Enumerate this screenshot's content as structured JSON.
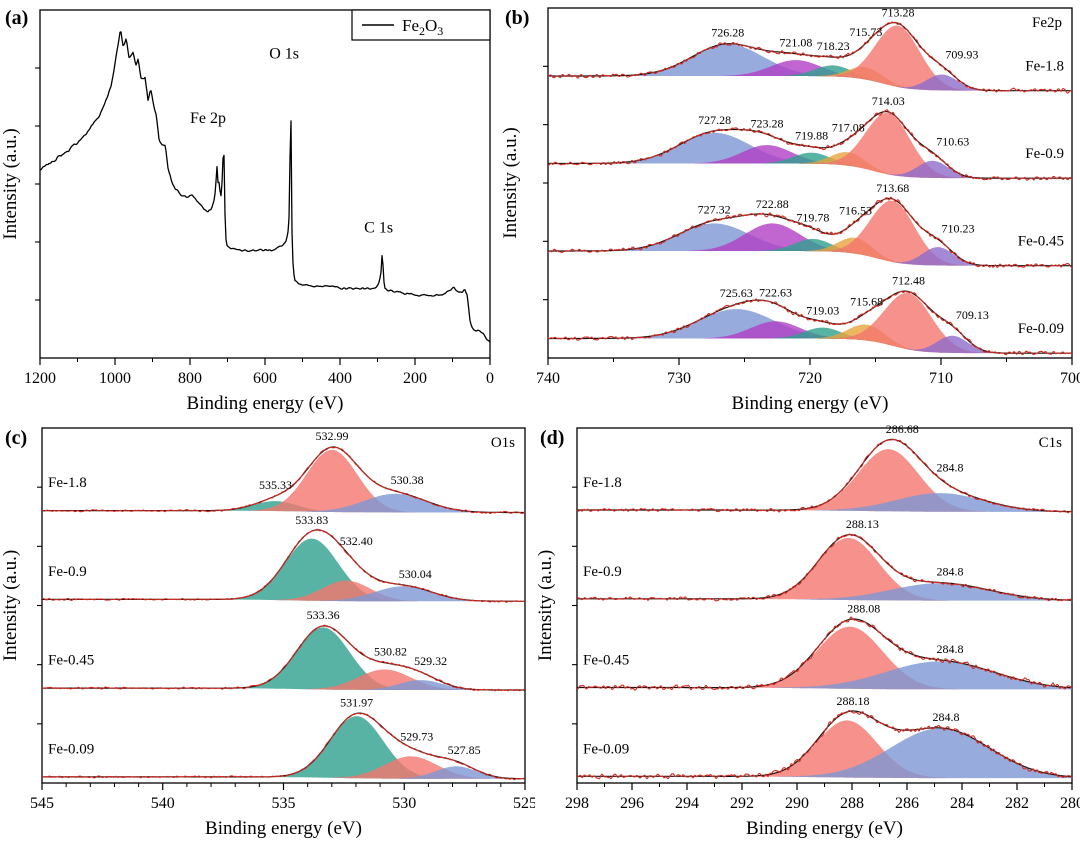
{
  "palette": {
    "signal_line": "#d42a20",
    "envelope_line": "#141414",
    "survey_line": "#000000",
    "red": "#f4756e",
    "blue": "#7d97d3",
    "teal": "#2fa08f",
    "purple": "#b13fc6",
    "orange": "#e7a43c",
    "violet": "#8d6bcb"
  },
  "chart_data": [
    {
      "id": "a",
      "type": "survey",
      "panel_label": "(a)",
      "xlabel": "Binding energy (eV)",
      "ylabel": "Intensity (a.u.)",
      "x_range": [
        1200,
        0
      ],
      "x_ticks": [
        1200,
        1000,
        800,
        600,
        400,
        200,
        0
      ],
      "x_minor": 100,
      "legend": {
        "parts": [
          {
            "t": "Fe"
          },
          {
            "t": "2",
            "sub": true
          },
          {
            "t": "O"
          },
          {
            "t": "3",
            "sub": true
          }
        ]
      },
      "annotations": [
        {
          "label": "Fe 2p",
          "x": 752,
          "y": 0.675
        },
        {
          "label": "O 1s",
          "x": 549,
          "y": 0.86
        },
        {
          "label": "C 1s",
          "x": 297,
          "y": 0.36
        }
      ],
      "points": [
        [
          1200,
          0.54
        ],
        [
          1160,
          0.57
        ],
        [
          1120,
          0.6
        ],
        [
          1080,
          0.64
        ],
        [
          1040,
          0.7
        ],
        [
          1010,
          0.78
        ],
        [
          995,
          0.88
        ],
        [
          985,
          0.95
        ],
        [
          978,
          0.89
        ],
        [
          970,
          0.92
        ],
        [
          962,
          0.86
        ],
        [
          952,
          0.88
        ],
        [
          945,
          0.84
        ],
        [
          938,
          0.86
        ],
        [
          930,
          0.8
        ],
        [
          920,
          0.81
        ],
        [
          912,
          0.74
        ],
        [
          905,
          0.77
        ],
        [
          898,
          0.73
        ],
        [
          890,
          0.7
        ],
        [
          882,
          0.62
        ],
        [
          874,
          0.61
        ],
        [
          866,
          0.61
        ],
        [
          858,
          0.54
        ],
        [
          850,
          0.51
        ],
        [
          840,
          0.49
        ],
        [
          825,
          0.47
        ],
        [
          810,
          0.46
        ],
        [
          795,
          0.47
        ],
        [
          780,
          0.45
        ],
        [
          765,
          0.43
        ],
        [
          752,
          0.42
        ],
        [
          742,
          0.43
        ],
        [
          734,
          0.46
        ],
        [
          729,
          0.53
        ],
        [
          727,
          0.57
        ],
        [
          725,
          0.49
        ],
        [
          722,
          0.51
        ],
        [
          719,
          0.47
        ],
        [
          716,
          0.47
        ],
        [
          713,
          0.55
        ],
        [
          710,
          0.62
        ],
        [
          708,
          0.5
        ],
        [
          706,
          0.37
        ],
        [
          703,
          0.33
        ],
        [
          700,
          0.32
        ],
        [
          685,
          0.315
        ],
        [
          665,
          0.31
        ],
        [
          645,
          0.31
        ],
        [
          625,
          0.31
        ],
        [
          605,
          0.31
        ],
        [
          585,
          0.31
        ],
        [
          568,
          0.315
        ],
        [
          552,
          0.325
        ],
        [
          543,
          0.335
        ],
        [
          537,
          0.37
        ],
        [
          534,
          0.46
        ],
        [
          532,
          0.8
        ],
        [
          530,
          0.62
        ],
        [
          528,
          0.36
        ],
        [
          525,
          0.26
        ],
        [
          521,
          0.22
        ],
        [
          512,
          0.215
        ],
        [
          498,
          0.21
        ],
        [
          482,
          0.21
        ],
        [
          466,
          0.205
        ],
        [
          450,
          0.205
        ],
        [
          434,
          0.21
        ],
        [
          418,
          0.205
        ],
        [
          402,
          0.2
        ],
        [
          386,
          0.2
        ],
        [
          370,
          0.2
        ],
        [
          354,
          0.2
        ],
        [
          338,
          0.2
        ],
        [
          322,
          0.2
        ],
        [
          306,
          0.2
        ],
        [
          297,
          0.21
        ],
        [
          291,
          0.24
        ],
        [
          287,
          0.31
        ],
        [
          284,
          0.23
        ],
        [
          281,
          0.2
        ],
        [
          274,
          0.195
        ],
        [
          258,
          0.19
        ],
        [
          242,
          0.19
        ],
        [
          226,
          0.185
        ],
        [
          210,
          0.185
        ],
        [
          194,
          0.18
        ],
        [
          178,
          0.18
        ],
        [
          162,
          0.18
        ],
        [
          146,
          0.18
        ],
        [
          130,
          0.182
        ],
        [
          116,
          0.188
        ],
        [
          104,
          0.198
        ],
        [
          97,
          0.208
        ],
        [
          91,
          0.196
        ],
        [
          83,
          0.19
        ],
        [
          75,
          0.19
        ],
        [
          67,
          0.196
        ],
        [
          61,
          0.182
        ],
        [
          57,
          0.145
        ],
        [
          53,
          0.105
        ],
        [
          49,
          0.088
        ],
        [
          43,
          0.08
        ],
        [
          37,
          0.076
        ],
        [
          31,
          0.08
        ],
        [
          25,
          0.076
        ],
        [
          19,
          0.07
        ],
        [
          13,
          0.062
        ],
        [
          7,
          0.052
        ],
        [
          0,
          0.046
        ]
      ]
    },
    {
      "id": "b",
      "type": "stacked",
      "panel_label": "(b)",
      "corner_label": "Fe2p",
      "xlabel": "Binding energy (eV)",
      "ylabel": "Intensity (a.u.)",
      "x_range": [
        740,
        700
      ],
      "x_ticks": [
        740,
        730,
        720,
        710,
        700
      ],
      "x_minor": 5,
      "label_side": "right",
      "traces": [
        {
          "name": "Fe-1.8",
          "background": {
            "left": 0.27,
            "right": 0.03,
            "step_center": 714.5,
            "step_width": 1.1
          },
          "peaks": [
            {
              "center": 726.28,
              "height": 0.52,
              "sigma": 2.7,
              "color": "blue",
              "label": "726.28"
            },
            {
              "center": 721.08,
              "height": 0.26,
              "sigma": 1.9,
              "color": "purple",
              "label": "721.08"
            },
            {
              "center": 718.23,
              "height": 0.18,
              "sigma": 1.4,
              "color": "teal",
              "label": "718.23"
            },
            {
              "center": 715.73,
              "height": 0.2,
              "sigma": 1.3,
              "color": "orange",
              "label": "715.73"
            },
            {
              "center": 713.28,
              "height": 1.0,
              "sigma": 1.7,
              "color": "red",
              "label": "713.28"
            },
            {
              "center": 709.93,
              "height": 0.26,
              "sigma": 1.2,
              "color": "violet",
              "label": "709.93",
              "ldx": 20
            }
          ]
        },
        {
          "name": "Fe-0.9",
          "background": {
            "left": 0.27,
            "right": 0.03,
            "step_center": 715.2,
            "step_width": 1.1
          },
          "peaks": [
            {
              "center": 727.28,
              "height": 0.5,
              "sigma": 2.7,
              "color": "blue",
              "label": "727.28"
            },
            {
              "center": 723.28,
              "height": 0.3,
              "sigma": 1.9,
              "color": "purple",
              "label": "723.28"
            },
            {
              "center": 719.88,
              "height": 0.18,
              "sigma": 1.4,
              "color": "teal",
              "label": "719.88"
            },
            {
              "center": 717.08,
              "height": 0.22,
              "sigma": 1.3,
              "color": "orange",
              "label": "717.08"
            },
            {
              "center": 714.03,
              "height": 1.0,
              "sigma": 1.7,
              "color": "red",
              "label": "714.03"
            },
            {
              "center": 710.63,
              "height": 0.28,
              "sigma": 1.2,
              "color": "violet",
              "label": "710.63",
              "ldx": 20
            }
          ]
        },
        {
          "name": "Fe-0.45",
          "background": {
            "left": 0.27,
            "right": 0.03,
            "step_center": 714.9,
            "step_width": 1.1
          },
          "peaks": [
            {
              "center": 727.32,
              "height": 0.45,
              "sigma": 2.7,
              "color": "blue",
              "label": "727.32"
            },
            {
              "center": 722.88,
              "height": 0.45,
              "sigma": 2.1,
              "color": "purple",
              "label": "722.88"
            },
            {
              "center": 719.78,
              "height": 0.2,
              "sigma": 1.4,
              "color": "teal",
              "label": "719.78"
            },
            {
              "center": 716.53,
              "height": 0.26,
              "sigma": 1.3,
              "color": "orange",
              "label": "716.53"
            },
            {
              "center": 713.68,
              "height": 1.0,
              "sigma": 1.7,
              "color": "red",
              "label": "713.68"
            },
            {
              "center": 710.23,
              "height": 0.3,
              "sigma": 1.2,
              "color": "violet",
              "label": "710.23",
              "ldx": 20
            }
          ]
        },
        {
          "name": "Fe-0.09",
          "background": {
            "left": 0.27,
            "right": 0.03,
            "step_center": 713.7,
            "step_width": 1.1
          },
          "peaks": [
            {
              "center": 725.63,
              "height": 0.48,
              "sigma": 2.9,
              "color": "blue",
              "label": "725.63"
            },
            {
              "center": 722.63,
              "height": 0.28,
              "sigma": 1.9,
              "color": "purple",
              "label": "722.63"
            },
            {
              "center": 719.03,
              "height": 0.18,
              "sigma": 1.4,
              "color": "teal",
              "label": "719.03"
            },
            {
              "center": 715.68,
              "height": 0.26,
              "sigma": 1.4,
              "color": "orange",
              "label": "715.68"
            },
            {
              "center": 712.48,
              "height": 0.92,
              "sigma": 1.8,
              "color": "red",
              "label": "712.48"
            },
            {
              "center": 709.13,
              "height": 0.28,
              "sigma": 1.2,
              "color": "violet",
              "label": "709.13",
              "ldx": 20
            }
          ]
        }
      ]
    },
    {
      "id": "c",
      "type": "stacked",
      "panel_label": "(c)",
      "corner_label": "O1s",
      "xlabel": "Binding energy (eV)",
      "ylabel": "Intensity (a.u.)",
      "x_range": [
        545,
        525
      ],
      "x_ticks": [
        545,
        540,
        535,
        530,
        525
      ],
      "x_minor": 1,
      "label_side": "left",
      "traces": [
        {
          "name": "Fe-1.8",
          "background": {
            "left": 0.05,
            "right": 0.02,
            "step_center": 534.0,
            "step_width": 1.0
          },
          "peaks": [
            {
              "center": 535.33,
              "height": 0.16,
              "sigma": 0.9,
              "color": "teal",
              "label": "535.33"
            },
            {
              "center": 532.99,
              "height": 1.0,
              "sigma": 1.05,
              "color": "red",
              "label": "532.99"
            },
            {
              "center": 530.38,
              "height": 0.3,
              "sigma": 1.3,
              "color": "blue",
              "label": "530.38",
              "ldx": 12
            }
          ]
        },
        {
          "name": "Fe-0.9",
          "background": {
            "left": 0.05,
            "right": 0.02,
            "step_center": 534.8,
            "step_width": 1.0
          },
          "peaks": [
            {
              "center": 533.83,
              "height": 1.0,
              "sigma": 1.1,
              "color": "teal",
              "label": "533.83"
            },
            {
              "center": 532.4,
              "height": 0.33,
              "sigma": 1.0,
              "color": "red",
              "label": "532.40",
              "ldx": 10
            },
            {
              "center": 530.04,
              "height": 0.24,
              "sigma": 1.2,
              "color": "blue",
              "label": "530.04",
              "ldx": 12
            }
          ]
        },
        {
          "name": "Fe-0.45",
          "background": {
            "left": 0.05,
            "right": 0.02,
            "step_center": 534.4,
            "step_width": 1.0
          },
          "peaks": [
            {
              "center": 533.36,
              "height": 1.0,
              "sigma": 1.1,
              "color": "teal",
              "label": "533.36"
            },
            {
              "center": 530.82,
              "height": 0.33,
              "sigma": 1.1,
              "color": "red",
              "label": "530.82",
              "ldx": 6
            },
            {
              "center": 529.32,
              "height": 0.16,
              "sigma": 0.9,
              "color": "blue",
              "label": "529.32",
              "ldx": 10
            }
          ]
        },
        {
          "name": "Fe-0.09",
          "background": {
            "left": 0.05,
            "right": 0.02,
            "step_center": 533.0,
            "step_width": 1.0
          },
          "peaks": [
            {
              "center": 531.97,
              "height": 1.0,
              "sigma": 1.1,
              "color": "teal",
              "label": "531.97"
            },
            {
              "center": 529.73,
              "height": 0.36,
              "sigma": 1.1,
              "color": "red",
              "label": "529.73",
              "ldx": 6
            },
            {
              "center": 527.85,
              "height": 0.2,
              "sigma": 0.85,
              "color": "blue",
              "label": "527.85",
              "ldx": 8
            }
          ]
        }
      ]
    },
    {
      "id": "d",
      "type": "stacked",
      "panel_label": "(d)",
      "corner_label": "C1s",
      "xlabel": "Binding energy (eV)",
      "ylabel": "Intensity (a.u.)",
      "x_range": [
        298,
        280
      ],
      "x_ticks": [
        298,
        296,
        294,
        292,
        290,
        288,
        286,
        284,
        282,
        280
      ],
      "x_minor": 1,
      "label_side": "left",
      "traces": [
        {
          "name": "Fe-1.8",
          "background": {
            "left": 0.06,
            "right": 0.03,
            "step_center": 287.7,
            "step_width": 1.2
          },
          "peaks": [
            {
              "center": 286.68,
              "height": 1.0,
              "sigma": 1.1,
              "color": "red",
              "label": "286.68",
              "ldx": 14
            },
            {
              "center": 284.8,
              "height": 0.3,
              "sigma": 1.6,
              "color": "blue",
              "label": "284.8",
              "ldx": 10
            }
          ]
        },
        {
          "name": "Fe-0.9",
          "background": {
            "left": 0.06,
            "right": 0.03,
            "step_center": 289.1,
            "step_width": 1.2
          },
          "peaks": [
            {
              "center": 288.13,
              "height": 1.0,
              "sigma": 1.1,
              "color": "red",
              "label": "288.13",
              "ldx": 14
            },
            {
              "center": 284.8,
              "height": 0.28,
              "sigma": 1.8,
              "color": "blue",
              "label": "284.8",
              "ldx": 10
            }
          ]
        },
        {
          "name": "Fe-0.45",
          "background": {
            "left": 0.06,
            "right": 0.03,
            "step_center": 289.1,
            "step_width": 1.2
          },
          "peaks": [
            {
              "center": 288.08,
              "height": 1.0,
              "sigma": 1.2,
              "color": "red",
              "label": "288.08",
              "ldx": 14
            },
            {
              "center": 284.8,
              "height": 0.45,
              "sigma": 2.0,
              "color": "blue",
              "label": "284.8",
              "ldx": 10
            }
          ]
        },
        {
          "name": "Fe-0.09",
          "background": {
            "left": 0.06,
            "right": 0.03,
            "step_center": 289.2,
            "step_width": 1.2
          },
          "peaks": [
            {
              "center": 288.18,
              "height": 0.92,
              "sigma": 1.1,
              "color": "red",
              "label": "288.18",
              "ldx": 6
            },
            {
              "center": 284.8,
              "height": 0.8,
              "sigma": 1.8,
              "color": "blue",
              "label": "284.8",
              "ldx": 6
            }
          ]
        }
      ]
    }
  ]
}
